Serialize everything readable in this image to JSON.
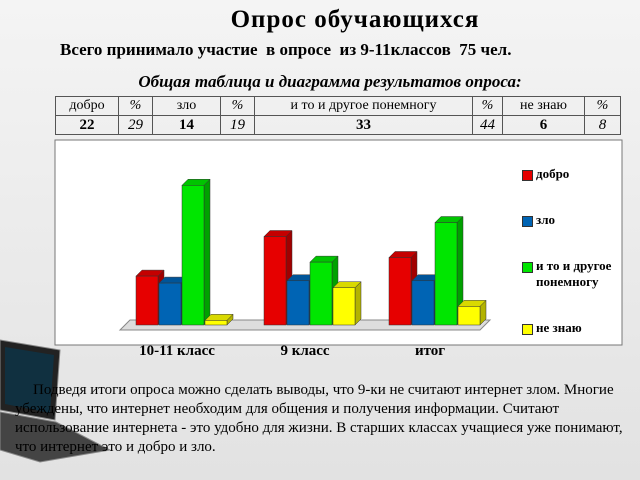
{
  "slide": {
    "title": "Опрос обучающихся",
    "subtitle": "Всего принимало участие  в опросе  из 9-11классов  75 чел.",
    "table_caption": "Общая таблица и диаграмма результатов опроса:",
    "conclusion": "Подведя  итоги опроса можно сделать выводы,  что 9-ки не считают интернет злом. Многие убеждены, что интернет необходим для общения и получения информации. Считают  использование интернета - это удобно для жизни. В старших классах учащиеся уже понимают, что интернет это и добро и зло."
  },
  "table": {
    "rows": [
      [
        "добро",
        "%",
        "зло",
        "%",
        "и то и другое понемногу",
        "%",
        "не знаю",
        "%"
      ],
      [
        "22",
        "29",
        "14",
        "19",
        "33",
        "44",
        "6",
        "8"
      ]
    ]
  },
  "chart_data": {
    "type": "bar3d",
    "categories": [
      "10-11 класс",
      "9 класс",
      "итог"
    ],
    "series": [
      {
        "name": "добро",
        "color": "#e60000",
        "values": [
          21,
          38,
          29
        ]
      },
      {
        "name": "зло",
        "color": "#0064b4",
        "values": [
          18,
          19,
          19
        ]
      },
      {
        "name": "и то и другое понемногу",
        "color": "#00e600",
        "values": [
          60,
          27,
          44
        ]
      },
      {
        "name": "не знаю",
        "color": "#ffff00",
        "values": [
          2,
          16,
          8
        ]
      }
    ],
    "ylim": [
      0,
      70
    ]
  }
}
